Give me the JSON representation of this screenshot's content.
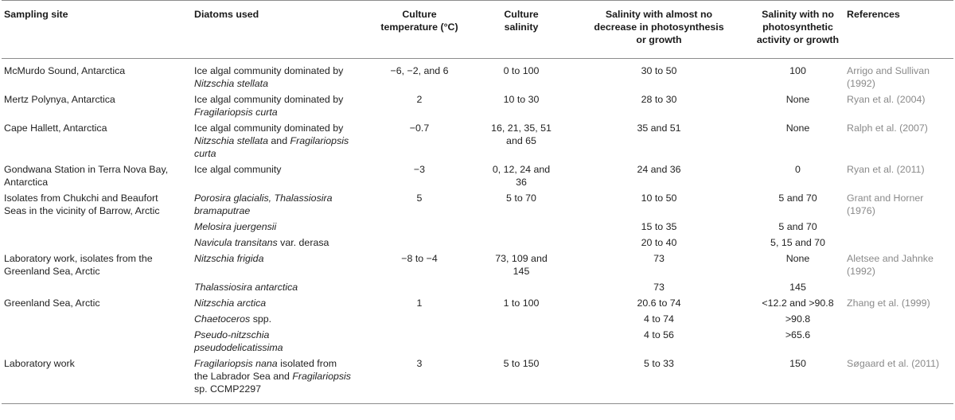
{
  "headers": {
    "site": "Sampling site",
    "diatoms": "Diatoms used",
    "temp_l1": "Culture",
    "temp_l2": "temperature (°C)",
    "sal_l1": "Culture",
    "sal_l2": "salinity",
    "nodec_l1": "Salinity with almost no",
    "nodec_l2": "decrease in photosynthesis",
    "nodec_l3": "or growth",
    "noact_l1": "Salinity with no",
    "noact_l2": "photosynthetic",
    "noact_l3": "activity or growth",
    "refs": "References"
  },
  "rows": [
    {
      "site_l1": "McMurdo Sound, Antarctica",
      "diatom_l1": "Ice algal community dominated by",
      "diatom_l2_it": "Nitzschia stellata",
      "temp": "−6, −2, and 6",
      "sal": "0 to 100",
      "nodec": "30 to 50",
      "noact": "100",
      "ref": "Arrigo and Sullivan (1992)"
    },
    {
      "site_l1": "Mertz Polynya, Antarctica",
      "diatom_l1": "Ice algal community dominated by",
      "diatom_l2_it": "Fragilariopsis curta",
      "temp": "2",
      "sal": "10 to 30",
      "nodec": "28 to 30",
      "noact": "None",
      "ref": "Ryan et al. (2004)"
    },
    {
      "site_l1": "Cape Hallett, Antarctica",
      "diatom_l1": "Ice algal community dominated by",
      "diatom_l2_it_a": "Nitzschia stellata",
      "diatom_l2_mid": " and ",
      "diatom_l2_it_b": "Fragilariopsis",
      "diatom_l3_it": "curta",
      "temp": "−0.7",
      "sal_l1": "16, 21, 35, 51",
      "sal_l2": "and 65",
      "nodec": "35 and 51",
      "noact": "None",
      "ref": "Ralph et al. (2007)"
    },
    {
      "site_l1": "Gondwana Station in Terra Nova Bay,",
      "site_l2": "Antarctica",
      "diatom_l1": "Ice algal community",
      "temp": "−3",
      "sal_l1": "0, 12, 24 and",
      "sal_l2": "36",
      "nodec": "24 and 36",
      "noact": "0",
      "ref": "Ryan et al. (2011)"
    },
    {
      "site_l1": "Isolates from Chukchi and Beaufort",
      "site_l2": "Seas in the vicinity of Barrow, Arctic",
      "diatom_l1_it": "Porosira glacialis, Thalassiosira",
      "diatom_l2_it": "bramaputrae",
      "temp": "5",
      "sal": "5 to 70",
      "nodec": "10 to 50",
      "noact": "5 and 70",
      "ref": "Grant and Horner (1976)"
    },
    {
      "diatom_l1_it": "Melosira juergensii",
      "nodec": "15 to 35",
      "noact": "5 and 70"
    },
    {
      "diatom_l1_it": "Navicula transitans",
      "diatom_l1_rest": " var. derasa",
      "nodec": "20 to 40",
      "noact": "5, 15 and 70"
    },
    {
      "site_l1": "Laboratory work, isolates from the",
      "site_l2": "Greenland Sea, Arctic",
      "diatom_l1_it": "Nitzschia frigida",
      "temp": "−8 to −4",
      "sal_l1": "73, 109 and",
      "sal_l2": "145",
      "nodec": "73",
      "noact": "None",
      "ref": "Aletsee and Jahnke (1992)"
    },
    {
      "diatom_l1_it": "Thalassiosira antarctica",
      "nodec": "73",
      "noact": "145"
    },
    {
      "site_l1": "Greenland Sea, Arctic",
      "diatom_l1_it": "Nitzschia arctica",
      "temp": "1",
      "sal": "1 to 100",
      "nodec": "20.6 to 74",
      "noact": "<12.2 and >90.8",
      "ref": "Zhang et al. (1999)"
    },
    {
      "diatom_l1_it": "Chaetoceros",
      "diatom_l1_rest": " spp.",
      "nodec": "4 to 74",
      "noact": ">90.8"
    },
    {
      "diatom_l1_it": "Pseudo-nitzschia",
      "diatom_l2_it": "pseudodelicatissima",
      "nodec": "4 to 56",
      "noact": ">65.6"
    },
    {
      "site_l1": "Laboratory work",
      "diatom_l1_it": "Fragilariopsis nana",
      "diatom_l1_rest": " isolated from",
      "diatom_l2_a": "the Labrador Sea and ",
      "diatom_l2_it": "Fragilariopsis",
      "diatom_l3": "sp. CCMP2297",
      "temp": "3",
      "sal": "5 to 150",
      "nodec": "5 to 33",
      "noact": "150",
      "ref": "Søgaard et al. (2011)"
    }
  ]
}
